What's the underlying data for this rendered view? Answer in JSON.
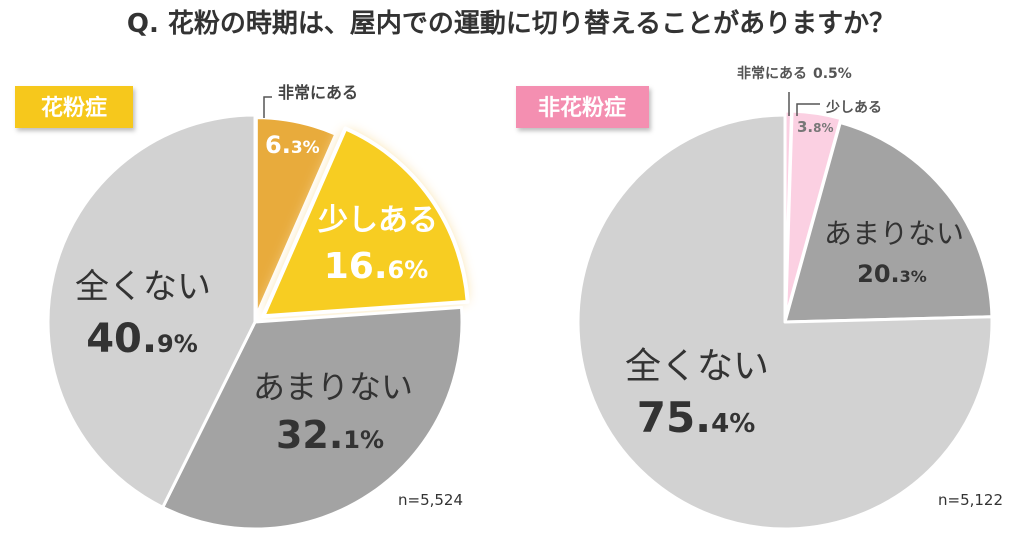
{
  "title": "Q. 花粉の時期は、屋内での運動に切り替えることがありますか？",
  "chart_data": [
    {
      "type": "pie",
      "title": "花粉症",
      "n_label": "n=5,524",
      "slices": [
        {
          "label": "非常にある",
          "value": 6.3,
          "value_main": "6.",
          "value_dec": "3%",
          "color": "#e8ab3c"
        },
        {
          "label": "少しある",
          "value": 16.6,
          "value_main": "16.",
          "value_dec": "6%",
          "color": "#f7cd20"
        },
        {
          "label": "あまりない",
          "value": 32.1,
          "value_main": "32.",
          "value_dec": "1%",
          "color": "#a3a3a3"
        },
        {
          "label": "全くない",
          "value": 40.9,
          "value_main": "40.",
          "value_dec": "9%",
          "color": "#d2d2d2"
        }
      ],
      "badge_color": "#f6c81f"
    },
    {
      "type": "pie",
      "title": "非花粉症",
      "n_label": "n=5,122",
      "slices": [
        {
          "label": "非常にある",
          "value": 0.5,
          "value_text": "0.5%",
          "color": "#fbd0e2"
        },
        {
          "label": "少しある",
          "value": 3.8,
          "value_main": "3.",
          "value_dec": "8%",
          "color": "#fbd0e2"
        },
        {
          "label": "あまりない",
          "value": 20.3,
          "value_main": "20.",
          "value_dec": "3%",
          "color": "#a3a3a3"
        },
        {
          "label": "全くない",
          "value": 75.4,
          "value_main": "75.",
          "value_dec": "4%",
          "color": "#d2d2d2"
        }
      ],
      "badge_color": "#f48fb1"
    }
  ]
}
